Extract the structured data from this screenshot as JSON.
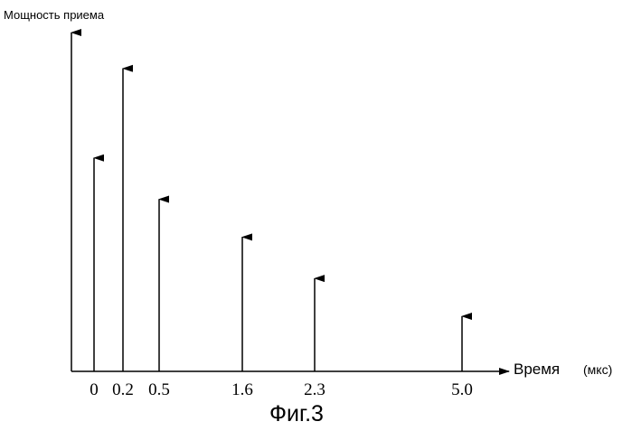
{
  "chart_data": {
    "type": "bar",
    "ylabel": "Мощность приема",
    "xlabel": "Время",
    "xlabel_unit": "(мкс)",
    "caption": "Фиг.3",
    "categories": [
      "0",
      "0.2",
      "0.5",
      "1.6",
      "2.3",
      "5.0"
    ],
    "x": [
      0,
      0.2,
      0.5,
      1.6,
      2.3,
      5.0
    ],
    "values": [
      0.62,
      0.88,
      0.5,
      0.39,
      0.27,
      0.16
    ],
    "grid": false,
    "legend": "none",
    "ylim": [
      0,
      1.0
    ]
  }
}
